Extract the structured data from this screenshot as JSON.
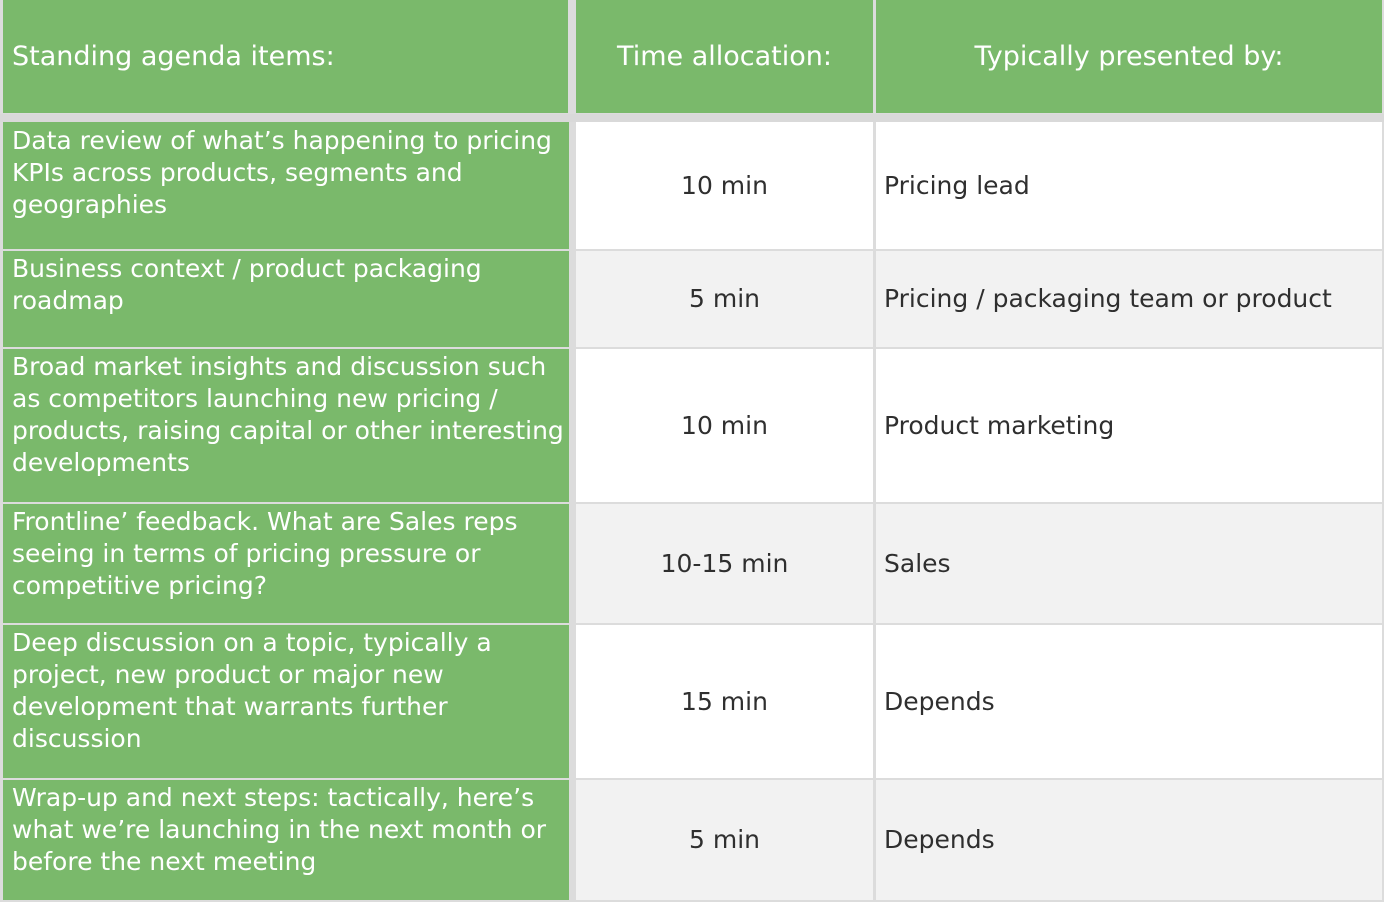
{
  "header": {
    "col1": "Standing agenda items:",
    "col2": "Time allocation:",
    "col3": "Typically presented by:"
  },
  "rows": [
    {
      "item": "Data review of what’s happening to pricing KPIs across products, segments and geographies",
      "time": "10 min",
      "presenter": "Pricing lead"
    },
    {
      "item": "Business context / product packaging roadmap",
      "time": "5 min",
      "presenter": "Pricing / packaging team or product"
    },
    {
      "item": "Broad market insights and discussion such as competitors launching new pricing / products, raising capital or other interesting developments",
      "time": "10 min",
      "presenter": "Product marketing"
    },
    {
      "item": "Frontline’ feedback. What are Sales reps seeing in terms of pricing pressure or competitive pricing?",
      "time": "10-15 min",
      "presenter": "Sales"
    },
    {
      "item": "Deep discussion on a topic, typically a project, new product or major new development that warrants further discussion",
      "time": "15 min",
      "presenter": "Depends"
    },
    {
      "item": "Wrap-up and next steps: tactically, here’s what we’re launching in the next month or before the next meeting",
      "time": "5 min",
      "presenter": "Depends"
    }
  ],
  "colors": {
    "header_green": "#7ab96b",
    "row_white": "#ffffff",
    "row_grey": "#f2f2f2",
    "grid": "#dcdcdc"
  }
}
